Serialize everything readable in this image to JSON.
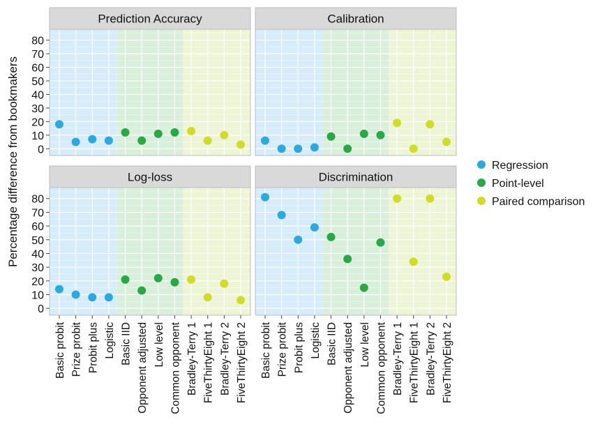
{
  "chart_data": {
    "type": "scatter",
    "ylabel": "Percentage difference from bookmakers",
    "categories": [
      "Basic probit",
      "Prize probit",
      "Probit plus",
      "Logistic",
      "Basic IID",
      "Opponent adjusted",
      "Low  level",
      "Common  opponent",
      "Bradley-Terry 1",
      "FiveThirtyEight 1",
      "Bradley-Terry 2",
      "FiveThirtyEight 2"
    ],
    "groups": [
      {
        "name": "Regression",
        "color": "#2ea9df",
        "band": "#d6ecfb",
        "categories": [
          "Basic probit",
          "Prize probit",
          "Probit plus",
          "Logistic"
        ]
      },
      {
        "name": "Point-level",
        "color": "#29a845",
        "band": "#d9eedb",
        "categories": [
          "Basic IID",
          "Opponent adjusted",
          "Low  level",
          "Common  opponent"
        ]
      },
      {
        "name": "Paired comparison",
        "color": "#d1dc2a",
        "band": "#eef5d6",
        "categories": [
          "Bradley-Terry 1",
          "FiveThirtyEight 1",
          "Bradley-Terry 2",
          "FiveThirtyEight 2"
        ]
      }
    ],
    "yticks": [
      0,
      10,
      20,
      30,
      40,
      50,
      60,
      70,
      80
    ],
    "ylim": [
      -5,
      88
    ],
    "grid": true,
    "legend_position": "right",
    "panels": [
      {
        "title": "Prediction Accuracy",
        "values": [
          18,
          5,
          7,
          6,
          12,
          6,
          11,
          12,
          13,
          6,
          10,
          3
        ]
      },
      {
        "title": "Calibration",
        "values": [
          6,
          0,
          0,
          1,
          9,
          0,
          11,
          10,
          19,
          0,
          18,
          5
        ]
      },
      {
        "title": "Log-loss",
        "values": [
          14,
          10,
          8,
          8,
          21,
          13,
          22,
          19,
          21,
          8,
          18,
          6
        ]
      },
      {
        "title": "Discrimination",
        "values": [
          81,
          68,
          50,
          59,
          52,
          36,
          15,
          48,
          80,
          34,
          80,
          23
        ]
      }
    ]
  }
}
